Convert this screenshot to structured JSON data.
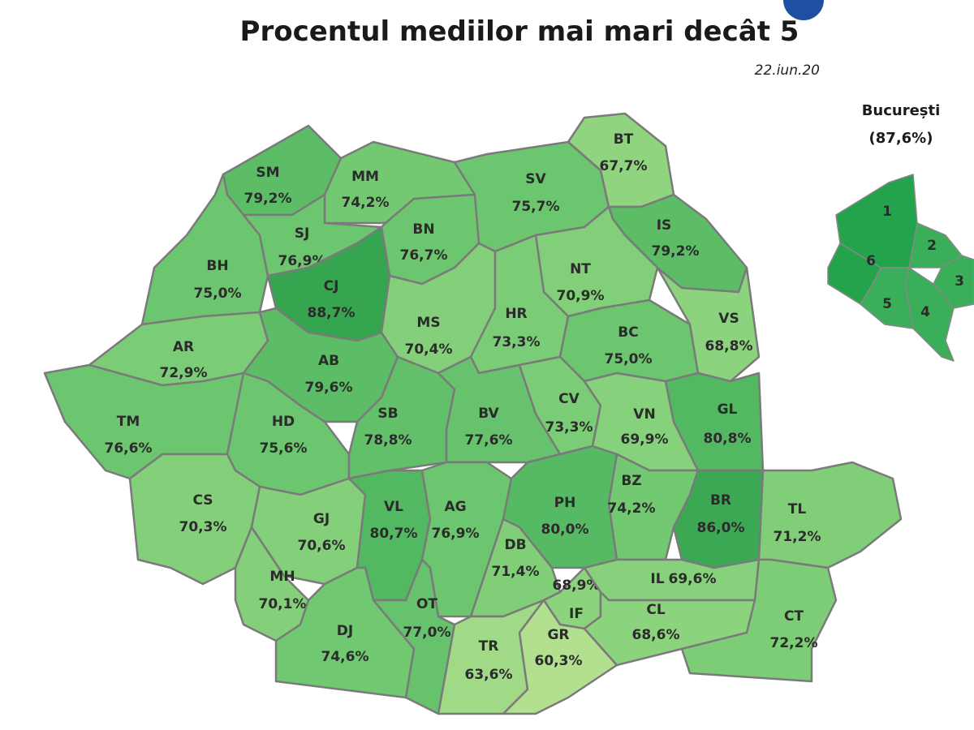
{
  "header": {
    "title": "Procentul mediilor mai mari decât 5",
    "date": "22.iun.20"
  },
  "counties": [
    {
      "code": "SM",
      "value": "79,2%",
      "color": "#5cbd66"
    },
    {
      "code": "MM",
      "value": "74,2%",
      "color": "#72c972"
    },
    {
      "code": "BH",
      "value": "75,0%",
      "color": "#6cc66f"
    },
    {
      "code": "SJ",
      "value": "76,9%",
      "color": "#6cc66f"
    },
    {
      "code": "CJ",
      "value": "88,7%",
      "color": "#35a550"
    },
    {
      "code": "BN",
      "value": "76,7%",
      "color": "#6cc66f"
    },
    {
      "code": "SV",
      "value": "75,7%",
      "color": "#6cc66f"
    },
    {
      "code": "BT",
      "value": "67,7%",
      "color": "#90d47f"
    },
    {
      "code": "IS",
      "value": "79,2%",
      "color": "#5cbd66"
    },
    {
      "code": "NT",
      "value": "70,9%",
      "color": "#82cf79"
    },
    {
      "code": "AR",
      "value": "72,9%",
      "color": "#7bcc76"
    },
    {
      "code": "TM",
      "value": "76,6%",
      "color": "#6cc66f"
    },
    {
      "code": "AB",
      "value": "79,6%",
      "color": "#5cbd66"
    },
    {
      "code": "MS",
      "value": "70,4%",
      "color": "#84d07a"
    },
    {
      "code": "HR",
      "value": "73,3%",
      "color": "#7bcc76"
    },
    {
      "code": "BC",
      "value": "75,0%",
      "color": "#6cc66f"
    },
    {
      "code": "VS",
      "value": "68,8%",
      "color": "#8cd37d"
    },
    {
      "code": "HD",
      "value": "75,6%",
      "color": "#6cc66f"
    },
    {
      "code": "SB",
      "value": "78,8%",
      "color": "#62c06a"
    },
    {
      "code": "BV",
      "value": "77,6%",
      "color": "#66c26c"
    },
    {
      "code": "CV",
      "value": "73,3%",
      "color": "#7bcc76"
    },
    {
      "code": "VN",
      "value": "69,9%",
      "color": "#86d17b"
    },
    {
      "code": "GL",
      "value": "80,8%",
      "color": "#52b862"
    },
    {
      "code": "CS",
      "value": "70,3%",
      "color": "#84d07a"
    },
    {
      "code": "GJ",
      "value": "70,6%",
      "color": "#84d07a"
    },
    {
      "code": "VL",
      "value": "80,7%",
      "color": "#52b862"
    },
    {
      "code": "AG",
      "value": "76,9%",
      "color": "#6cc66f"
    },
    {
      "code": "PH",
      "value": "80,0%",
      "color": "#55ba63"
    },
    {
      "code": "BZ",
      "value": "74,2%",
      "color": "#72c972"
    },
    {
      "code": "BR",
      "value": "86,0%",
      "color": "#3ba954"
    },
    {
      "code": "TL",
      "value": "71,2%",
      "color": "#80cf78"
    },
    {
      "code": "MH",
      "value": "70,1%",
      "color": "#84d07a"
    },
    {
      "code": "DJ",
      "value": "74,6%",
      "color": "#70c871"
    },
    {
      "code": "OT",
      "value": "77,0%",
      "color": "#66c26c"
    },
    {
      "code": "DB",
      "value": "71,4%",
      "color": "#80cf78"
    },
    {
      "code": "IF",
      "value": "68,9%",
      "color": "#8cd37d"
    },
    {
      "code": "TR",
      "value": "63,6%",
      "color": "#a0da87"
    },
    {
      "code": "GR",
      "value": "60,3%",
      "color": "#b2e08f"
    },
    {
      "code": "IL",
      "value": "69,6%",
      "color": "#88d17c"
    },
    {
      "code": "CL",
      "value": "68,6%",
      "color": "#8cd37d"
    },
    {
      "code": "CT",
      "value": "72,2%",
      "color": "#7dcd77"
    }
  ],
  "bucharest": {
    "title": "București",
    "value": "(87,6%)",
    "color": "#35a550",
    "sectors": [
      {
        "label": "1",
        "color": "#22a34c"
      },
      {
        "label": "2",
        "color": "#3aae58"
      },
      {
        "label": "3",
        "color": "#3aae58"
      },
      {
        "label": "4",
        "color": "#3aae58"
      },
      {
        "label": "5",
        "color": "#3aae58"
      },
      {
        "label": "6",
        "color": "#22a34c"
      }
    ]
  }
}
